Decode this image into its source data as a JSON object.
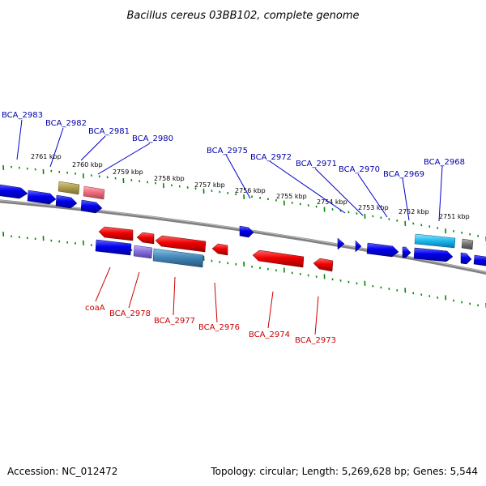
{
  "title": "Bacillus cereus 03BB102, complete genome",
  "footer": {
    "accession": "Accession: NC_012472",
    "summary": "Topology: circular; Length: 5,269,628 bp; Genes: 5,544"
  },
  "scale_labels": [
    "2761 kbp",
    "2760 kbp",
    "2759 kbp",
    "2758 kbp",
    "2757 kbp",
    "2756 kbp",
    "2755 kbp",
    "2754 kbp",
    "2753 kbp",
    "2752 kbp",
    "2751 kbp"
  ],
  "forward_gene_labels": [
    "BCA_2983",
    "BCA_2982",
    "BCA_2981",
    "BCA_2980",
    "BCA_2975",
    "BCA_2972",
    "BCA_2971",
    "BCA_2970",
    "BCA_2969",
    "BCA_2968"
  ],
  "reverse_gene_labels": [
    "coaA",
    "BCA_2978",
    "BCA_2977",
    "BCA_2976",
    "BCA_2974",
    "BCA_2973"
  ],
  "colors": {
    "forward_cds": "#0000ee",
    "reverse_cds": "#ee0000",
    "label_forward": "#0000aa",
    "label_reverse": "#cc0000",
    "backbone": "#808080",
    "ticks": "#008800",
    "cyan_feature": "#22bbee",
    "olive_feature": "#b0a050",
    "pink_feature": "#ee7080",
    "purple_feature": "#8870dd",
    "steel_feature": "#4488bb",
    "grey_feature": "#777777"
  }
}
